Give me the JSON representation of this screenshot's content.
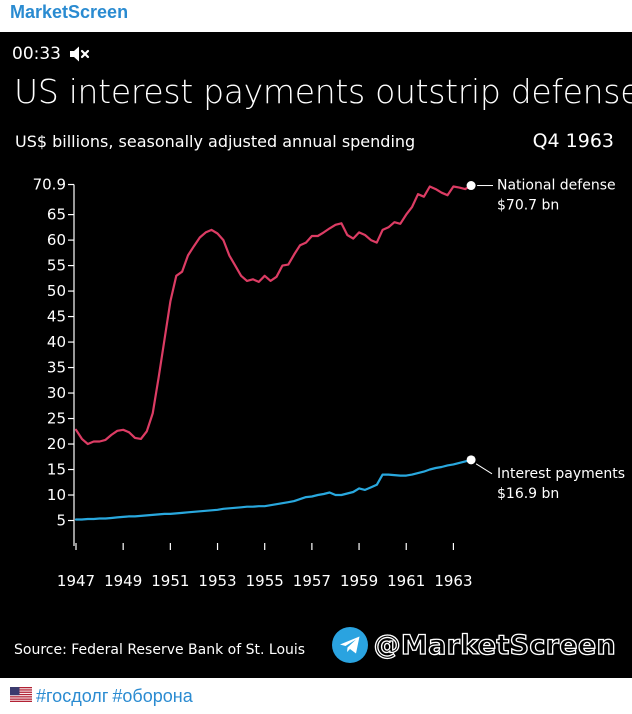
{
  "channel": {
    "name": "MarketScreen"
  },
  "video": {
    "time": "00:33",
    "mute_icon": "speaker-muted-icon"
  },
  "footer": {
    "flag_icon": "us-flag-icon",
    "hashtags": [
      "#госдолг",
      "#оборона"
    ]
  },
  "watermark": {
    "icon": "telegram-icon",
    "text": "@MarketScreen",
    "color": "#2aa3e0"
  },
  "chart_data": {
    "type": "line",
    "title": "US interest payments outstrip defense",
    "subtitle": "US$ billions, seasonally adjusted annual spending",
    "period_label": "Q4 1963",
    "source": "Source: Federal Reserve Bank of St. Louis",
    "xlabel": "",
    "ylabel": "",
    "xlim": [
      1947,
      1964
    ],
    "ylim": [
      0,
      71
    ],
    "x_ticks": [
      1947,
      1949,
      1951,
      1953,
      1955,
      1957,
      1959,
      1961,
      1963
    ],
    "x_tick_labels": [
      "1947",
      "1949",
      "1951",
      "1953",
      "1955",
      "1957",
      "1959",
      "1961",
      "1963"
    ],
    "y_ticks": [
      5,
      10,
      15,
      20,
      25,
      30,
      35,
      40,
      45,
      50,
      55,
      60,
      65
    ],
    "y_tick_labels": [
      "5",
      "10",
      "15",
      "20",
      "25",
      "30",
      "35",
      "40",
      "45",
      "50",
      "55",
      "60",
      "65"
    ],
    "y_max_tick": 70.9,
    "y_max_tick_label": "70.9",
    "grid": false,
    "series": [
      {
        "name": "National defense",
        "color": "#dc3c64",
        "end_label": "National defense",
        "end_value_label": "$70.7 bn",
        "x": [
          1947.0,
          1947.25,
          1947.5,
          1947.75,
          1948.0,
          1948.25,
          1948.5,
          1948.75,
          1949.0,
          1949.25,
          1949.5,
          1949.75,
          1950.0,
          1950.25,
          1950.5,
          1950.75,
          1951.0,
          1951.25,
          1951.5,
          1951.75,
          1952.0,
          1952.25,
          1952.5,
          1952.75,
          1953.0,
          1953.25,
          1953.5,
          1953.75,
          1954.0,
          1954.25,
          1954.5,
          1954.75,
          1955.0,
          1955.25,
          1955.5,
          1955.75,
          1956.0,
          1956.25,
          1956.5,
          1956.75,
          1957.0,
          1957.25,
          1957.5,
          1957.75,
          1958.0,
          1958.25,
          1958.5,
          1958.75,
          1959.0,
          1959.25,
          1959.5,
          1959.75,
          1960.0,
          1960.25,
          1960.5,
          1960.75,
          1961.0,
          1961.25,
          1961.5,
          1961.75,
          1962.0,
          1962.25,
          1962.5,
          1962.75,
          1963.0,
          1963.25,
          1963.5,
          1963.75
        ],
        "values": [
          22.8,
          21.0,
          20.0,
          20.5,
          20.5,
          20.8,
          21.8,
          22.6,
          22.8,
          22.3,
          21.2,
          21.0,
          22.5,
          26.0,
          33.0,
          40.5,
          48.0,
          53.0,
          53.8,
          57.0,
          58.8,
          60.5,
          61.5,
          62.0,
          61.3,
          60.0,
          57.0,
          55.0,
          53.0,
          52.0,
          52.3,
          51.8,
          53.0,
          52.0,
          52.8,
          55.0,
          55.2,
          57.2,
          59.0,
          59.5,
          60.8,
          60.8,
          61.5,
          62.3,
          63.0,
          63.3,
          61.0,
          60.3,
          61.5,
          61.0,
          60.0,
          59.5,
          62.0,
          62.5,
          63.5,
          63.2,
          65.0,
          66.5,
          69.0,
          68.5,
          70.5,
          70.0,
          69.3,
          68.8,
          70.5,
          70.3,
          70.0,
          70.7
        ]
      },
      {
        "name": "Interest payments",
        "color": "#29a8de",
        "end_label": "Interest payments",
        "end_value_label": "$16.9 bn",
        "x": [
          1947.0,
          1947.25,
          1947.5,
          1947.75,
          1948.0,
          1948.25,
          1948.5,
          1948.75,
          1949.0,
          1949.25,
          1949.5,
          1949.75,
          1950.0,
          1950.25,
          1950.5,
          1950.75,
          1951.0,
          1951.25,
          1951.5,
          1951.75,
          1952.0,
          1952.25,
          1952.5,
          1952.75,
          1953.0,
          1953.25,
          1953.5,
          1953.75,
          1954.0,
          1954.25,
          1954.5,
          1954.75,
          1955.0,
          1955.25,
          1955.5,
          1955.75,
          1956.0,
          1956.25,
          1956.5,
          1956.75,
          1957.0,
          1957.25,
          1957.5,
          1957.75,
          1958.0,
          1958.25,
          1958.5,
          1958.75,
          1959.0,
          1959.25,
          1959.5,
          1959.75,
          1960.0,
          1960.25,
          1960.5,
          1960.75,
          1961.0,
          1961.25,
          1961.5,
          1961.75,
          1962.0,
          1962.25,
          1962.5,
          1962.75,
          1963.0,
          1963.25,
          1963.5,
          1963.75
        ],
        "values": [
          5.2,
          5.2,
          5.3,
          5.3,
          5.4,
          5.4,
          5.5,
          5.6,
          5.7,
          5.8,
          5.8,
          5.9,
          6.0,
          6.1,
          6.2,
          6.3,
          6.3,
          6.4,
          6.5,
          6.6,
          6.7,
          6.8,
          6.9,
          7.0,
          7.1,
          7.3,
          7.4,
          7.5,
          7.6,
          7.7,
          7.7,
          7.8,
          7.8,
          8.0,
          8.2,
          8.4,
          8.6,
          8.8,
          9.2,
          9.6,
          9.7,
          10.0,
          10.2,
          10.5,
          10.0,
          10.0,
          10.3,
          10.6,
          11.3,
          11.0,
          11.5,
          12.0,
          14.0,
          14.0,
          13.9,
          13.8,
          13.8,
          14.0,
          14.3,
          14.6,
          15.0,
          15.3,
          15.5,
          15.8,
          16.0,
          16.3,
          16.6,
          16.9
        ]
      }
    ]
  }
}
